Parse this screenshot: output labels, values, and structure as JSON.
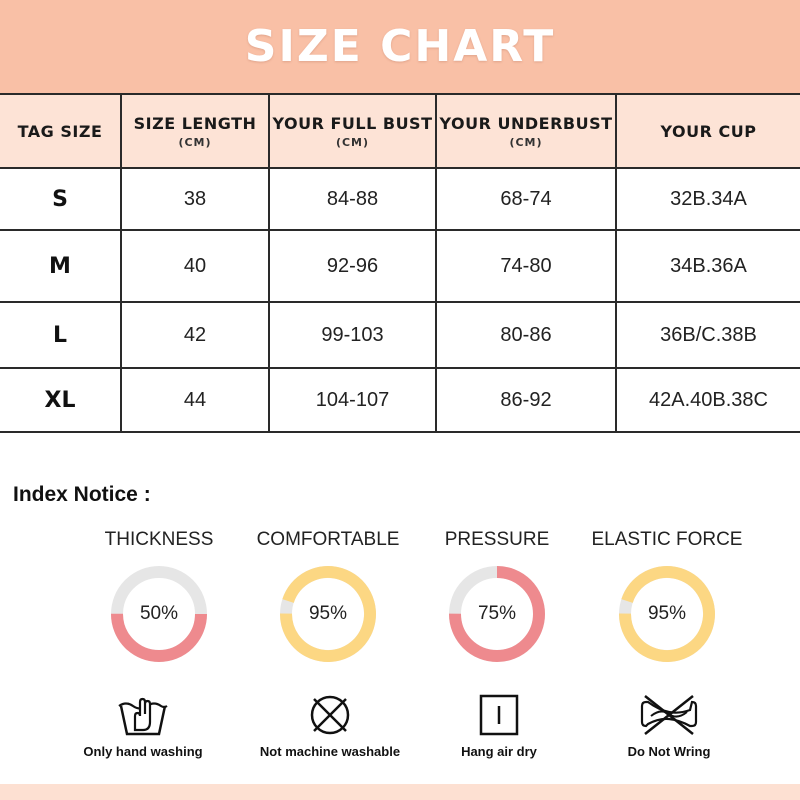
{
  "header": {
    "title": "SIZE CHART"
  },
  "table": {
    "columns": [
      {
        "main": "TAG SIZE",
        "unit": ""
      },
      {
        "main": "SIZE LENGTH",
        "unit": "(CM)"
      },
      {
        "main": "YOUR FULL BUST",
        "unit": "(CM)"
      },
      {
        "main": "YOUR UNDERBUST",
        "unit": "(CM)"
      },
      {
        "main": "YOUR CUP",
        "unit": ""
      }
    ],
    "rows": [
      [
        "S",
        "38",
        "84-88",
        "68-74",
        "32B.34A"
      ],
      [
        "M",
        "40",
        "92-96",
        "74-80",
        "34B.36A"
      ],
      [
        "L",
        "42",
        "99-103",
        "80-86",
        "36B/C.38B"
      ],
      [
        "XL",
        "44",
        "104-107",
        "86-92",
        "42A.40B.38C"
      ]
    ]
  },
  "notice": {
    "title": "Index Notice :",
    "metrics": [
      {
        "label": "THICKNESS",
        "value_text": "50%",
        "value": 50,
        "color": "#ee8a8e"
      },
      {
        "label": "COMFORTABLE",
        "value_text": "95%",
        "value": 95,
        "color": "#fcd783"
      },
      {
        "label": "PRESSURE",
        "value_text": "75%",
        "value": 75,
        "color": "#ee8a8e"
      },
      {
        "label": "ELASTIC FORCE",
        "value_text": "95%",
        "value": 95,
        "color": "#fcd783"
      }
    ],
    "track_color": "#e6e6e6"
  },
  "care": [
    {
      "label": "Only hand washing",
      "icon": "hand-wash-icon"
    },
    {
      "label": "Not machine washable",
      "icon": "no-machine-wash-icon"
    },
    {
      "label": "Hang air dry",
      "icon": "hang-dry-icon"
    },
    {
      "label": "Do Not Wring",
      "icon": "do-not-wring-icon"
    }
  ],
  "colors": {
    "banner": "#f9c0a6",
    "table_header": "#fde3d6",
    "footer": "#fde0d2"
  }
}
